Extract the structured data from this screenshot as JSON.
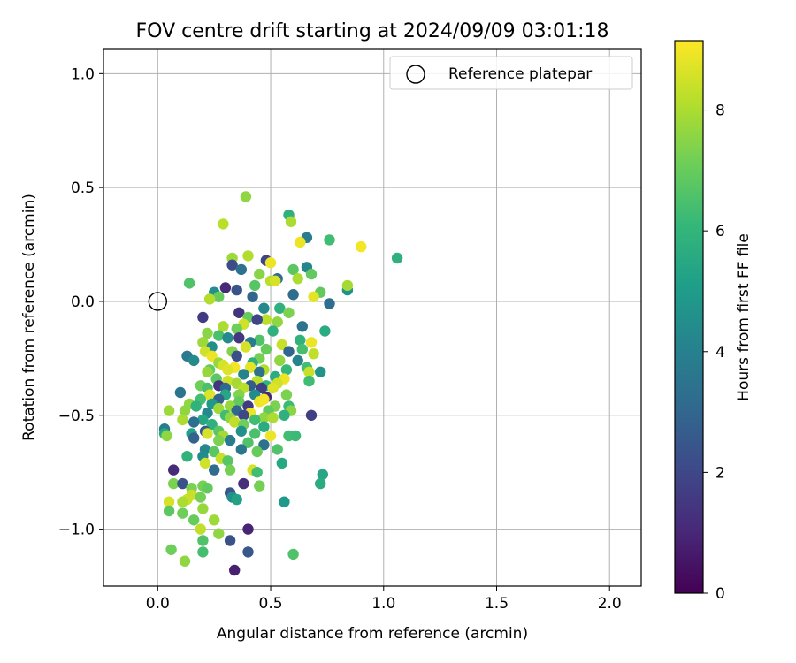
{
  "chart_data": {
    "type": "scatter",
    "title": "FOV centre drift starting at 2024/09/09 03:01:18",
    "xlabel": "Angular distance from reference (arcmin)",
    "ylabel": "Rotation from reference (arcmin)",
    "xlim": [
      -0.24,
      2.14
    ],
    "ylim": [
      -1.25,
      1.11
    ],
    "xticks": [
      0.0,
      0.5,
      1.0,
      1.5,
      2.0
    ],
    "xtick_labels": [
      "0.0",
      "0.5",
      "1.0",
      "1.5",
      "2.0"
    ],
    "yticks": [
      -1.0,
      -0.5,
      0.0,
      0.5,
      1.0
    ],
    "ytick_labels": [
      "−1.0",
      "−0.5",
      "0.0",
      "0.5",
      "1.0"
    ],
    "grid": true,
    "legend": {
      "placement": "top-right",
      "label": "Reference platepar",
      "marker": "open-circle"
    },
    "reference_point": {
      "x": 0.0,
      "y": 0.0
    },
    "colorbar": {
      "label": "Hours from first FF file",
      "min": 0,
      "max": 9.15,
      "ticks": [
        0,
        2,
        4,
        6,
        8
      ],
      "tick_labels": [
        "0",
        "2",
        "4",
        "6",
        "8"
      ],
      "colormap": "viridis",
      "stops": [
        "#440154",
        "#482878",
        "#3e4989",
        "#31688e",
        "#26828e",
        "#1f9e89",
        "#35b779",
        "#6ece58",
        "#b5de2b",
        "#fde725"
      ]
    },
    "points_note_columns": [
      "x",
      "y",
      "hours"
    ],
    "points": [
      [
        0.39,
        0.46,
        7.6
      ],
      [
        0.58,
        0.38,
        5.8
      ],
      [
        0.59,
        0.35,
        8.0
      ],
      [
        0.29,
        0.34,
        8.2
      ],
      [
        0.76,
        0.27,
        6.3
      ],
      [
        0.66,
        0.28,
        3.8
      ],
      [
        0.63,
        0.26,
        8.9
      ],
      [
        0.9,
        0.24,
        9.0
      ],
      [
        1.06,
        0.19,
        5.8
      ],
      [
        0.4,
        0.2,
        8.1
      ],
      [
        0.33,
        0.19,
        7.8
      ],
      [
        0.33,
        0.16,
        2.1
      ],
      [
        0.48,
        0.18,
        1.9
      ],
      [
        0.5,
        0.17,
        8.9
      ],
      [
        0.37,
        0.14,
        3.4
      ],
      [
        0.45,
        0.12,
        7.5
      ],
      [
        0.6,
        0.14,
        6.8
      ],
      [
        0.66,
        0.15,
        4.2
      ],
      [
        0.68,
        0.12,
        6.9
      ],
      [
        0.53,
        0.1,
        3.2
      ],
      [
        0.62,
        0.1,
        8.0
      ],
      [
        0.5,
        0.09,
        8.2
      ],
      [
        0.52,
        0.09,
        8.6
      ],
      [
        0.43,
        0.07,
        6.7
      ],
      [
        0.14,
        0.08,
        6.6
      ],
      [
        0.35,
        0.05,
        2.4
      ],
      [
        0.3,
        0.06,
        1.1
      ],
      [
        0.25,
        0.04,
        4.5
      ],
      [
        0.27,
        0.02,
        7.0
      ],
      [
        0.23,
        0.01,
        8.1
      ],
      [
        0.42,
        0.02,
        3.0
      ],
      [
        0.6,
        0.03,
        3.2
      ],
      [
        0.72,
        0.04,
        6.9
      ],
      [
        0.84,
        0.05,
        4.6
      ],
      [
        0.84,
        0.07,
        7.9
      ],
      [
        0.69,
        0.02,
        8.8
      ],
      [
        0.76,
        -0.01,
        3.3
      ],
      [
        0.54,
        -0.03,
        5.8
      ],
      [
        0.47,
        -0.03,
        4.3
      ],
      [
        0.58,
        -0.05,
        7.3
      ],
      [
        0.36,
        -0.05,
        1.4
      ],
      [
        0.4,
        -0.07,
        7.0
      ],
      [
        0.2,
        -0.07,
        1.6
      ],
      [
        0.48,
        -0.08,
        8.2
      ],
      [
        0.29,
        -0.11,
        8.0
      ],
      [
        0.44,
        -0.08,
        1.9
      ],
      [
        0.53,
        -0.09,
        7.6
      ],
      [
        0.38,
        -0.1,
        8.5
      ],
      [
        0.64,
        -0.11,
        3.5
      ],
      [
        0.35,
        -0.12,
        7.1
      ],
      [
        0.51,
        -0.13,
        5.8
      ],
      [
        0.74,
        -0.13,
        5.6
      ],
      [
        0.22,
        -0.14,
        7.5
      ],
      [
        0.27,
        -0.15,
        6.5
      ],
      [
        0.31,
        -0.16,
        4.4
      ],
      [
        0.36,
        -0.16,
        1.5
      ],
      [
        0.45,
        -0.17,
        6.6
      ],
      [
        0.63,
        -0.17,
        5.9
      ],
      [
        0.2,
        -0.18,
        7.8
      ],
      [
        0.41,
        -0.18,
        3.8
      ],
      [
        0.55,
        -0.19,
        8.4
      ],
      [
        0.68,
        -0.18,
        8.9
      ],
      [
        0.24,
        -0.2,
        4.5
      ],
      [
        0.39,
        -0.2,
        8.6
      ],
      [
        0.48,
        -0.21,
        7.0
      ],
      [
        0.64,
        -0.21,
        6.4
      ],
      [
        0.33,
        -0.22,
        7.4
      ],
      [
        0.21,
        -0.22,
        8.5
      ],
      [
        0.58,
        -0.22,
        3.0
      ],
      [
        0.69,
        -0.23,
        8.3
      ],
      [
        0.13,
        -0.24,
        3.7
      ],
      [
        0.24,
        -0.24,
        8.9
      ],
      [
        0.35,
        -0.24,
        2.2
      ],
      [
        0.45,
        -0.25,
        7.2
      ],
      [
        0.54,
        -0.26,
        7.6
      ],
      [
        0.16,
        -0.26,
        4.4
      ],
      [
        0.27,
        -0.27,
        7.7
      ],
      [
        0.42,
        -0.27,
        5.8
      ],
      [
        0.62,
        -0.26,
        4.1
      ],
      [
        0.29,
        -0.28,
        8.6
      ],
      [
        0.34,
        -0.29,
        9.0
      ],
      [
        0.41,
        -0.29,
        8.8
      ],
      [
        0.47,
        -0.3,
        8.1
      ],
      [
        0.57,
        -0.3,
        6.1
      ],
      [
        0.66,
        -0.29,
        6.3
      ],
      [
        0.23,
        -0.3,
        6.9
      ],
      [
        0.31,
        -0.3,
        8.7
      ],
      [
        0.45,
        -0.31,
        3.4
      ],
      [
        0.67,
        -0.31,
        8.4
      ],
      [
        0.72,
        -0.31,
        4.7
      ],
      [
        0.22,
        -0.31,
        7.7
      ],
      [
        0.38,
        -0.32,
        4.1
      ],
      [
        0.52,
        -0.33,
        5.6
      ],
      [
        0.26,
        -0.34,
        6.8
      ],
      [
        0.31,
        -0.35,
        8.5
      ],
      [
        0.44,
        -0.35,
        8.2
      ],
      [
        0.56,
        -0.34,
        8.9
      ],
      [
        0.67,
        -0.35,
        6.3
      ],
      [
        0.19,
        -0.37,
        7.1
      ],
      [
        0.27,
        -0.37,
        1.4
      ],
      [
        0.35,
        -0.36,
        7.9
      ],
      [
        0.41,
        -0.37,
        2.7
      ],
      [
        0.48,
        -0.37,
        6.0
      ],
      [
        0.53,
        -0.36,
        8.5
      ],
      [
        0.22,
        -0.38,
        6.5
      ],
      [
        0.3,
        -0.38,
        3.1
      ],
      [
        0.38,
        -0.38,
        8.2
      ],
      [
        0.46,
        -0.38,
        1.8
      ],
      [
        0.51,
        -0.38,
        8.7
      ],
      [
        0.1,
        -0.4,
        3.5
      ],
      [
        0.23,
        -0.41,
        8.7
      ],
      [
        0.3,
        -0.41,
        5.4
      ],
      [
        0.36,
        -0.41,
        7.4
      ],
      [
        0.43,
        -0.41,
        4.4
      ],
      [
        0.48,
        -0.42,
        1.1
      ],
      [
        0.57,
        -0.41,
        7.3
      ],
      [
        0.19,
        -0.43,
        6.4
      ],
      [
        0.27,
        -0.43,
        2.9
      ],
      [
        0.36,
        -0.44,
        6.9
      ],
      [
        0.45,
        -0.44,
        8.9
      ],
      [
        0.47,
        -0.43,
        9.0
      ],
      [
        0.14,
        -0.45,
        7.6
      ],
      [
        0.24,
        -0.45,
        4.9
      ],
      [
        0.32,
        -0.46,
        7.7
      ],
      [
        0.4,
        -0.46,
        1.6
      ],
      [
        0.52,
        -0.46,
        7.3
      ],
      [
        0.58,
        -0.46,
        6.2
      ],
      [
        0.17,
        -0.46,
        5.9
      ],
      [
        0.27,
        -0.47,
        7.8
      ],
      [
        0.35,
        -0.48,
        3.0
      ],
      [
        0.41,
        -0.49,
        8.9
      ],
      [
        0.49,
        -0.48,
        6.9
      ],
      [
        0.59,
        -0.48,
        7.5
      ],
      [
        0.05,
        -0.48,
        7.8
      ],
      [
        0.12,
        -0.48,
        7.6
      ],
      [
        0.22,
        -0.49,
        4.3
      ],
      [
        0.3,
        -0.5,
        6.3
      ],
      [
        0.38,
        -0.5,
        2.0
      ],
      [
        0.47,
        -0.51,
        7.6
      ],
      [
        0.56,
        -0.5,
        5.8
      ],
      [
        0.68,
        -0.5,
        1.7
      ],
      [
        0.11,
        -0.52,
        8.0
      ],
      [
        0.2,
        -0.52,
        5.4
      ],
      [
        0.32,
        -0.51,
        7.6
      ],
      [
        0.43,
        -0.52,
        6.3
      ],
      [
        0.51,
        -0.51,
        8.0
      ],
      [
        0.16,
        -0.53,
        3.3
      ],
      [
        0.24,
        -0.54,
        5.8
      ],
      [
        0.34,
        -0.53,
        8.3
      ],
      [
        0.38,
        -0.54,
        7.1
      ],
      [
        0.47,
        -0.55,
        5.6
      ],
      [
        0.03,
        -0.56,
        3.8
      ],
      [
        0.21,
        -0.57,
        2.5
      ],
      [
        0.27,
        -0.57,
        6.8
      ],
      [
        0.37,
        -0.57,
        4.6
      ],
      [
        0.43,
        -0.58,
        6.5
      ],
      [
        0.03,
        -0.58,
        5.5
      ],
      [
        0.04,
        -0.59,
        7.6
      ],
      [
        0.15,
        -0.58,
        5.2
      ],
      [
        0.22,
        -0.58,
        8.6
      ],
      [
        0.29,
        -0.59,
        7.9
      ],
      [
        0.5,
        -0.59,
        8.9
      ],
      [
        0.58,
        -0.59,
        6.3
      ],
      [
        0.61,
        -0.59,
        6.2
      ],
      [
        0.16,
        -0.6,
        2.9
      ],
      [
        0.27,
        -0.61,
        7.3
      ],
      [
        0.32,
        -0.61,
        3.8
      ],
      [
        0.4,
        -0.62,
        6.6
      ],
      [
        0.47,
        -0.63,
        3.4
      ],
      [
        0.53,
        -0.65,
        6.6
      ],
      [
        0.21,
        -0.65,
        4.2
      ],
      [
        0.25,
        -0.66,
        6.8
      ],
      [
        0.37,
        -0.65,
        3.6
      ],
      [
        0.44,
        -0.66,
        7.0
      ],
      [
        0.13,
        -0.68,
        5.9
      ],
      [
        0.2,
        -0.68,
        4.4
      ],
      [
        0.28,
        -0.69,
        8.4
      ],
      [
        0.31,
        -0.7,
        6.7
      ],
      [
        0.55,
        -0.71,
        5.5
      ],
      [
        0.21,
        -0.71,
        8.5
      ],
      [
        0.07,
        -0.74,
        1.1
      ],
      [
        0.25,
        -0.74,
        3.2
      ],
      [
        0.32,
        -0.74,
        7.2
      ],
      [
        0.42,
        -0.74,
        8.6
      ],
      [
        0.44,
        -0.75,
        6.3
      ],
      [
        0.73,
        -0.76,
        5.4
      ],
      [
        0.72,
        -0.8,
        5.6
      ],
      [
        0.07,
        -0.8,
        7.3
      ],
      [
        0.11,
        -0.8,
        2.3
      ],
      [
        0.38,
        -0.8,
        1.2
      ],
      [
        0.2,
        -0.81,
        7.2
      ],
      [
        0.45,
        -0.81,
        7.2
      ],
      [
        0.15,
        -0.82,
        7.3
      ],
      [
        0.22,
        -0.82,
        6.9
      ],
      [
        0.32,
        -0.84,
        2.5
      ],
      [
        0.15,
        -0.85,
        8.4
      ],
      [
        0.19,
        -0.86,
        7.2
      ],
      [
        0.33,
        -0.86,
        4.5
      ],
      [
        0.35,
        -0.87,
        5.2
      ],
      [
        0.13,
        -0.87,
        8.4
      ],
      [
        0.05,
        -0.88,
        8.6
      ],
      [
        0.11,
        -0.88,
        8.0
      ],
      [
        0.56,
        -0.88,
        4.9
      ],
      [
        0.05,
        -0.92,
        6.8
      ],
      [
        0.2,
        -0.91,
        7.7
      ],
      [
        0.11,
        -0.93,
        7.1
      ],
      [
        0.16,
        -0.96,
        7.0
      ],
      [
        0.25,
        -0.96,
        7.8
      ],
      [
        0.19,
        -1.0,
        8.3
      ],
      [
        0.4,
        -1.0,
        0.9
      ],
      [
        0.27,
        -1.02,
        7.6
      ],
      [
        0.2,
        -1.05,
        6.6
      ],
      [
        0.32,
        -1.05,
        2.3
      ],
      [
        0.06,
        -1.09,
        7.1
      ],
      [
        0.2,
        -1.1,
        6.4
      ],
      [
        0.4,
        -1.1,
        2.5
      ],
      [
        0.6,
        -1.11,
        6.6
      ],
      [
        0.12,
        -1.14,
        7.6
      ],
      [
        0.34,
        -1.18,
        0.8
      ]
    ]
  }
}
